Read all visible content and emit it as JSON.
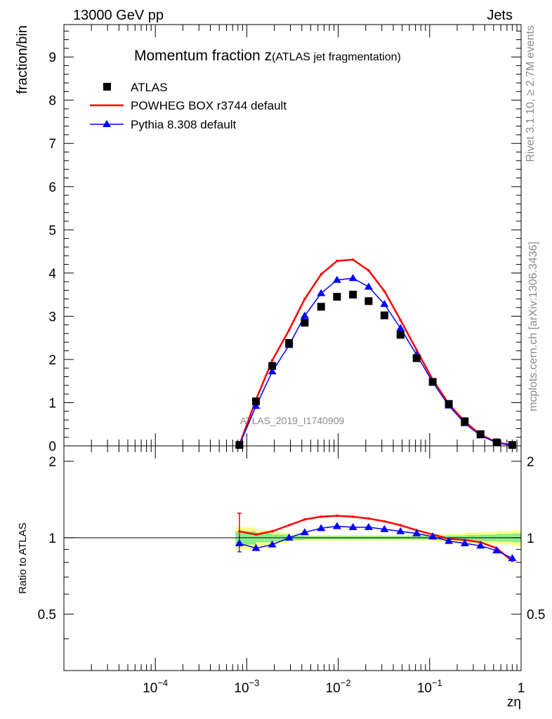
{
  "header": {
    "left": "13000 GeV pp",
    "right": "Jets"
  },
  "side_labels": {
    "rivet": "Rivet 3.1.10, ≥ 2.7M events",
    "mcplots": "mcplots.cern.ch [arXiv:1306.3436]"
  },
  "chart_data": [
    {
      "type": "scatter",
      "panel": "main",
      "title": "Momentum fraction z",
      "subtitle": "(ATLAS jet fragmentation)",
      "ylabel": "fraction/bin",
      "xlabel": "",
      "watermark": "ATLAS_2019_I1740909",
      "xscale": "log",
      "xlim": [
        1e-05,
        1
      ],
      "ylim": [
        0,
        9.75
      ],
      "yticks": [
        "0",
        "1",
        "2",
        "3",
        "4",
        "5",
        "6",
        "7",
        "8",
        "9"
      ],
      "legend_position": "top-left",
      "series": [
        {
          "name": "ATLAS",
          "style": "markers",
          "marker": "square",
          "color": "#000000",
          "x": [
            0.00083,
            0.00126,
            0.0019,
            0.0029,
            0.0043,
            0.0065,
            0.0097,
            0.0145,
            0.0215,
            0.032,
            0.048,
            0.072,
            0.108,
            0.162,
            0.242,
            0.36,
            0.54,
            0.8
          ],
          "y": [
            0.02,
            1.03,
            1.85,
            2.38,
            2.85,
            3.22,
            3.45,
            3.5,
            3.35,
            3.02,
            2.57,
            2.03,
            1.48,
            0.97,
            0.57,
            0.27,
            0.08,
            0.02
          ]
        },
        {
          "name": "POWHEG BOX r3744 default",
          "style": "line",
          "color": "#ff0000",
          "x": [
            0.00083,
            0.00126,
            0.0019,
            0.0029,
            0.0043,
            0.0065,
            0.0097,
            0.0145,
            0.0215,
            0.032,
            0.048,
            0.072,
            0.108,
            0.162,
            0.242,
            0.36,
            0.54,
            0.8
          ],
          "y": [
            0.02,
            1.07,
            1.98,
            2.68,
            3.4,
            3.97,
            4.28,
            4.31,
            4.06,
            3.58,
            2.91,
            2.22,
            1.53,
            0.97,
            0.56,
            0.26,
            0.08,
            0.015
          ]
        },
        {
          "name": "Pythia 8.308 default",
          "style": "line+markers",
          "marker": "triangle",
          "color": "#0000ff",
          "x": [
            0.00083,
            0.00126,
            0.0019,
            0.0029,
            0.0043,
            0.0065,
            0.0097,
            0.0145,
            0.0215,
            0.032,
            0.048,
            0.072,
            0.108,
            0.162,
            0.242,
            0.36,
            0.54,
            0.8
          ],
          "y": [
            0.02,
            0.92,
            1.72,
            2.33,
            3.01,
            3.53,
            3.84,
            3.88,
            3.68,
            3.28,
            2.72,
            2.11,
            1.47,
            0.93,
            0.52,
            0.24,
            0.07,
            0.015
          ]
        }
      ]
    },
    {
      "type": "line",
      "panel": "ratio",
      "ylabel": "Ratio to ATLAS",
      "xlabel": "zη",
      "xscale": "log",
      "xlim": [
        1e-05,
        1
      ],
      "ylim": [
        0.3,
        2.3
      ],
      "xticks": [
        "10^-4",
        "10^-3",
        "10^-2",
        "10^-1",
        "1"
      ],
      "yticks": [
        "0.5",
        "1",
        "2"
      ],
      "reference": 1,
      "band_colors": {
        "inner": "#88ee88",
        "outer": "#ffff88"
      },
      "bands": {
        "x": [
          0.00075,
          0.00126,
          0.0019,
          0.0029,
          0.0043,
          0.0065,
          0.0097,
          0.0145,
          0.0215,
          0.032,
          0.048,
          0.072,
          0.108,
          0.162,
          0.242,
          0.36,
          0.54,
          0.8,
          1.0
        ],
        "inner_lo": [
          0.94,
          0.96,
          0.97,
          0.98,
          0.985,
          0.985,
          0.985,
          0.985,
          0.985,
          0.985,
          0.985,
          0.985,
          0.98,
          0.98,
          0.975,
          0.97,
          0.965,
          0.96,
          0.96
        ],
        "inner_hi": [
          1.06,
          1.04,
          1.03,
          1.02,
          1.015,
          1.015,
          1.015,
          1.015,
          1.015,
          1.015,
          1.015,
          1.015,
          1.02,
          1.02,
          1.025,
          1.03,
          1.035,
          1.04,
          1.04
        ],
        "outer_lo": [
          0.9,
          0.93,
          0.95,
          0.97,
          0.975,
          0.975,
          0.975,
          0.975,
          0.975,
          0.975,
          0.975,
          0.975,
          0.965,
          0.96,
          0.95,
          0.945,
          0.94,
          0.93,
          0.93
        ],
        "outer_hi": [
          1.1,
          1.07,
          1.05,
          1.03,
          1.025,
          1.025,
          1.025,
          1.025,
          1.025,
          1.025,
          1.025,
          1.025,
          1.035,
          1.04,
          1.05,
          1.055,
          1.06,
          1.07,
          1.07
        ]
      },
      "series": [
        {
          "name": "POWHEG BOX r3744 default",
          "color": "#ff0000",
          "x": [
            0.00083,
            0.00126,
            0.0019,
            0.0029,
            0.0043,
            0.0065,
            0.0097,
            0.0145,
            0.0215,
            0.032,
            0.048,
            0.072,
            0.108,
            0.162,
            0.242,
            0.36,
            0.54,
            0.8
          ],
          "y": [
            1.06,
            1.03,
            1.06,
            1.12,
            1.18,
            1.21,
            1.22,
            1.21,
            1.19,
            1.16,
            1.12,
            1.07,
            1.03,
            0.99,
            0.98,
            0.96,
            0.91,
            0.81
          ],
          "err": [
            0.19,
            0,
            0,
            0,
            0,
            0,
            0,
            0,
            0,
            0,
            0,
            0,
            0,
            0,
            0,
            0,
            0,
            0.02
          ]
        },
        {
          "name": "Pythia 8.308 default",
          "color": "#0000ff",
          "x": [
            0.00083,
            0.00126,
            0.0019,
            0.0029,
            0.0043,
            0.0065,
            0.0097,
            0.0145,
            0.0215,
            0.032,
            0.048,
            0.072,
            0.108,
            0.162,
            0.242,
            0.36,
            0.54,
            0.8
          ],
          "y": [
            0.95,
            0.91,
            0.94,
            1.0,
            1.05,
            1.09,
            1.11,
            1.1,
            1.1,
            1.08,
            1.06,
            1.04,
            1.01,
            0.97,
            0.95,
            0.93,
            0.89,
            0.83
          ],
          "err": [
            0.07,
            0,
            0,
            0,
            0,
            0,
            0,
            0,
            0,
            0,
            0,
            0,
            0,
            0,
            0,
            0,
            0,
            0
          ]
        }
      ]
    }
  ]
}
